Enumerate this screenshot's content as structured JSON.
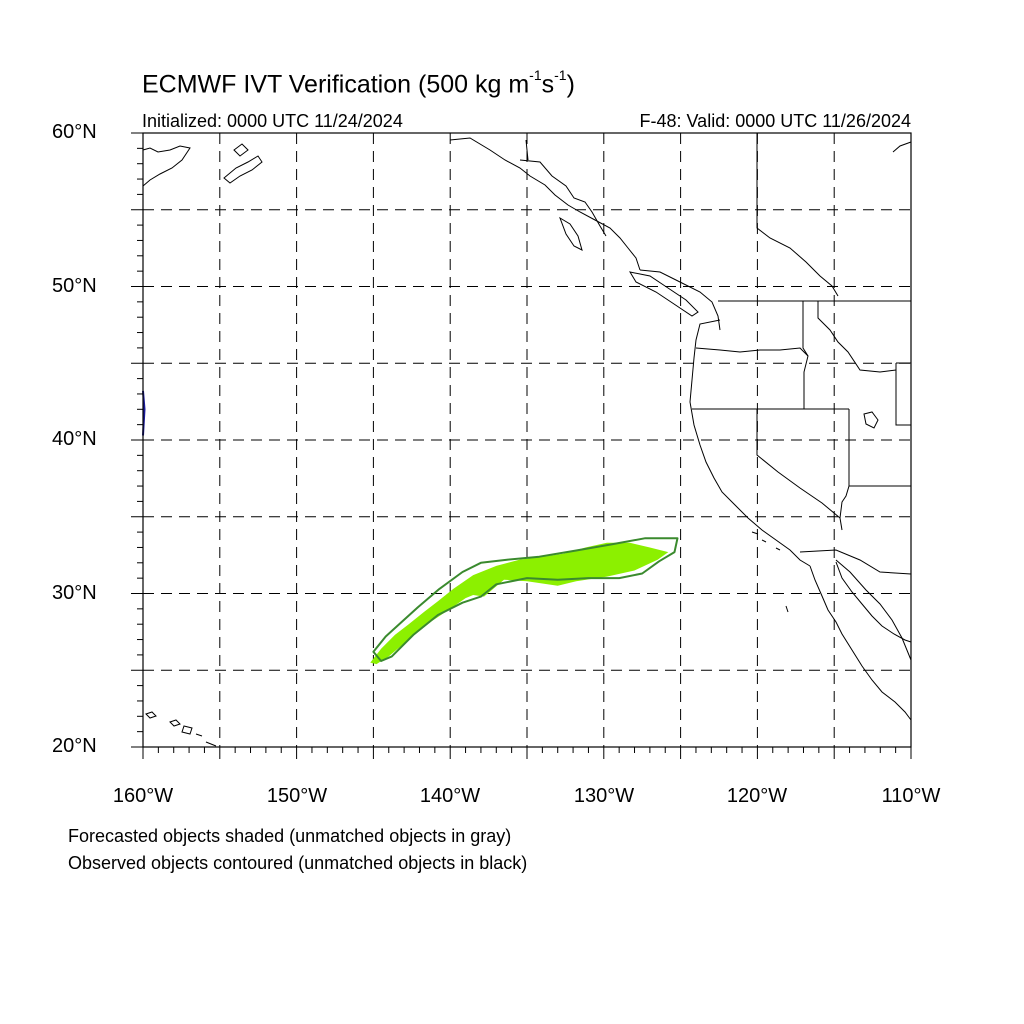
{
  "title": {
    "prefix": "ECMWF IVT Verification (500 kg m",
    "exp1": "-1",
    "mid": "s",
    "exp2": "-1",
    "suffix": ")"
  },
  "initialized": "Initialized: 0000 UTC 11/24/2024",
  "valid": "F-48: Valid: 0000 UTC 11/26/2024",
  "map": {
    "lon_range": [
      -160,
      -110
    ],
    "lat_range": [
      20,
      60
    ],
    "grid_lon_step": 5,
    "grid_lat_step": 5,
    "grid_style": "dashed",
    "lat_labels": [
      {
        "lat": 60,
        "text": "60°N"
      },
      {
        "lat": 50,
        "text": "50°N"
      },
      {
        "lat": 40,
        "text": "40°N"
      },
      {
        "lat": 30,
        "text": "30°N"
      },
      {
        "lat": 20,
        "text": "20°N"
      }
    ],
    "lon_labels": [
      {
        "lon": -160,
        "text": "160°W"
      },
      {
        "lon": -150,
        "text": "150°W"
      },
      {
        "lon": -140,
        "text": "140°W"
      },
      {
        "lon": -130,
        "text": "130°W"
      },
      {
        "lon": -120,
        "text": "120°W"
      },
      {
        "lon": -110,
        "text": "110°W"
      }
    ],
    "forecast_color": "#8cf000",
    "observed_color": "#3a8a2e",
    "forecast_object": [
      [
        -145.2,
        25.5
      ],
      [
        -144.5,
        26.4
      ],
      [
        -143.6,
        27.3
      ],
      [
        -142.7,
        28.0
      ],
      [
        -141.7,
        28.8
      ],
      [
        -140.8,
        29.5
      ],
      [
        -139.8,
        30.3
      ],
      [
        -138.5,
        31.2
      ],
      [
        -137.0,
        31.8
      ],
      [
        -135.5,
        32.2
      ],
      [
        -134.0,
        32.4
      ],
      [
        -132.6,
        32.6
      ],
      [
        -131.2,
        33.0
      ],
      [
        -129.8,
        33.3
      ],
      [
        -128.3,
        33.3
      ],
      [
        -127.0,
        33.0
      ],
      [
        -125.8,
        32.7
      ],
      [
        -126.5,
        32.2
      ],
      [
        -128.0,
        31.5
      ],
      [
        -129.8,
        31.1
      ],
      [
        -131.8,
        30.8
      ],
      [
        -133.0,
        30.5
      ],
      [
        -135.0,
        30.8
      ],
      [
        -136.5,
        30.9
      ],
      [
        -137.2,
        30.3
      ],
      [
        -137.8,
        29.8
      ],
      [
        -138.5,
        29.9
      ],
      [
        -139.0,
        29.7
      ],
      [
        -140.0,
        29.0
      ],
      [
        -141.2,
        28.2
      ],
      [
        -142.7,
        27.0
      ],
      [
        -144.0,
        25.9
      ],
      [
        -144.8,
        25.4
      ]
    ],
    "observed_object": [
      [
        -144.5,
        25.6
      ],
      [
        -145.0,
        26.2
      ],
      [
        -144.2,
        27.2
      ],
      [
        -143.1,
        28.2
      ],
      [
        -142.1,
        29.1
      ],
      [
        -140.7,
        30.3
      ],
      [
        -139.2,
        31.4
      ],
      [
        -138.0,
        32.0
      ],
      [
        -136.3,
        32.2
      ],
      [
        -134.2,
        32.4
      ],
      [
        -131.8,
        32.8
      ],
      [
        -129.5,
        33.2
      ],
      [
        -127.3,
        33.6
      ],
      [
        -125.2,
        33.6
      ],
      [
        -125.4,
        32.7
      ],
      [
        -126.4,
        32.1
      ],
      [
        -127.5,
        31.3
      ],
      [
        -129.0,
        31.0
      ],
      [
        -131.0,
        31.0
      ],
      [
        -133.0,
        30.9
      ],
      [
        -135.0,
        31.0
      ],
      [
        -137.0,
        30.6
      ],
      [
        -138.0,
        29.8
      ],
      [
        -139.2,
        29.4
      ],
      [
        -140.8,
        28.6
      ],
      [
        -142.4,
        27.3
      ],
      [
        -143.8,
        25.9
      ]
    ],
    "edge_object": [
      [
        -160.0,
        43.2
      ],
      [
        -159.9,
        42.0
      ],
      [
        -160.0,
        40.3
      ]
    ],
    "edge_object_color": "#1a1a9a"
  },
  "notes": [
    "Forecasted objects shaded (unmatched objects in gray)",
    "Observed objects contoured (unmatched objects in black)"
  ]
}
